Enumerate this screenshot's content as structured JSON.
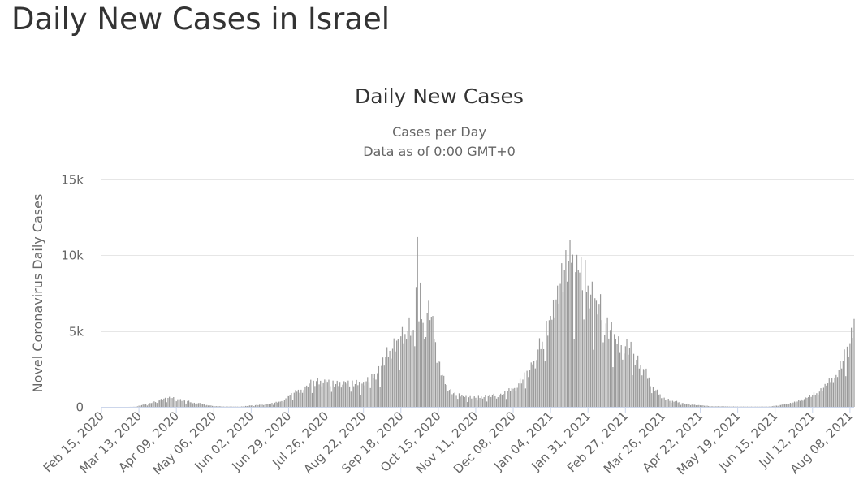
{
  "page": {
    "heading": "Daily New Cases in Israel"
  },
  "chart_data": {
    "type": "bar",
    "title": "Daily New Cases",
    "subtitle": [
      "Cases per Day",
      "Data as of 0:00 GMT+0"
    ],
    "ylabel": "Novel Coronavirus Daily Cases",
    "xlabel": "",
    "ylim": [
      0,
      15000
    ],
    "yticks": [
      {
        "value": 0,
        "label": "0"
      },
      {
        "value": 5000,
        "label": "5k"
      },
      {
        "value": 10000,
        "label": "10k"
      },
      {
        "value": 15000,
        "label": "15k"
      }
    ],
    "x_start": "2020-02-15",
    "x_end": "2021-08-11",
    "xticks": [
      {
        "date": "2020-02-15",
        "label": "Feb 15, 2020"
      },
      {
        "date": "2020-03-13",
        "label": "Mar 13, 2020"
      },
      {
        "date": "2020-04-09",
        "label": "Apr 09, 2020"
      },
      {
        "date": "2020-05-06",
        "label": "May 06, 2020"
      },
      {
        "date": "2020-06-02",
        "label": "Jun 02, 2020"
      },
      {
        "date": "2020-06-29",
        "label": "Jun 29, 2020"
      },
      {
        "date": "2020-07-26",
        "label": "Jul 26, 2020"
      },
      {
        "date": "2020-08-22",
        "label": "Aug 22, 2020"
      },
      {
        "date": "2020-09-18",
        "label": "Sep 18, 2020"
      },
      {
        "date": "2020-10-15",
        "label": "Oct 15, 2020"
      },
      {
        "date": "2020-11-11",
        "label": "Nov 11, 2020"
      },
      {
        "date": "2020-12-08",
        "label": "Dec 08, 2020"
      },
      {
        "date": "2021-01-04",
        "label": "Jan 04, 2021"
      },
      {
        "date": "2021-01-31",
        "label": "Jan 31, 2021"
      },
      {
        "date": "2021-02-27",
        "label": "Feb 27, 2021"
      },
      {
        "date": "2021-03-26",
        "label": "Mar 26, 2021"
      },
      {
        "date": "2021-04-22",
        "label": "Apr 22, 2021"
      },
      {
        "date": "2021-05-19",
        "label": "May 19, 2021"
      },
      {
        "date": "2021-06-15",
        "label": "Jun 15, 2021"
      },
      {
        "date": "2021-07-12",
        "label": "Jul 12, 2021"
      },
      {
        "date": "2021-08-08",
        "label": "Aug 08, 2021"
      }
    ],
    "series": [
      {
        "color": "#999999",
        "points": [
          [
            "2020-02-15",
            0
          ],
          [
            "2020-03-05",
            0
          ],
          [
            "2020-03-10",
            10
          ],
          [
            "2020-03-17",
            150
          ],
          [
            "2020-03-22",
            250
          ],
          [
            "2020-03-27",
            420
          ],
          [
            "2020-04-01",
            600
          ],
          [
            "2020-04-05",
            580
          ],
          [
            "2020-04-10",
            500
          ],
          [
            "2020-04-15",
            420
          ],
          [
            "2020-04-20",
            300
          ],
          [
            "2020-04-25",
            250
          ],
          [
            "2020-05-01",
            120
          ],
          [
            "2020-05-06",
            60
          ],
          [
            "2020-05-15",
            20
          ],
          [
            "2020-05-25",
            15
          ],
          [
            "2020-06-02",
            90
          ],
          [
            "2020-06-09",
            150
          ],
          [
            "2020-06-16",
            220
          ],
          [
            "2020-06-23",
            350
          ],
          [
            "2020-06-29",
            700
          ],
          [
            "2020-07-05",
            1000
          ],
          [
            "2020-07-12",
            1400
          ],
          [
            "2020-07-19",
            1700
          ],
          [
            "2020-07-26",
            1750
          ],
          [
            "2020-08-02",
            1500
          ],
          [
            "2020-08-09",
            1600
          ],
          [
            "2020-08-16",
            1500
          ],
          [
            "2020-08-22",
            1600
          ],
          [
            "2020-08-29",
            1900
          ],
          [
            "2020-09-04",
            2700
          ],
          [
            "2020-09-10",
            3700
          ],
          [
            "2020-09-16",
            4500
          ],
          [
            "2020-09-22",
            4500
          ],
          [
            "2020-09-24",
            5900
          ],
          [
            "2020-09-28",
            4000
          ],
          [
            "2020-09-30",
            11200
          ],
          [
            "2020-10-02",
            8200
          ],
          [
            "2020-10-05",
            4500
          ],
          [
            "2020-10-08",
            7000
          ],
          [
            "2020-10-12",
            4500
          ],
          [
            "2020-10-15",
            3000
          ],
          [
            "2020-10-20",
            1500
          ],
          [
            "2020-10-26",
            900
          ],
          [
            "2020-11-02",
            700
          ],
          [
            "2020-11-11",
            600
          ],
          [
            "2020-11-20",
            700
          ],
          [
            "2020-11-30",
            800
          ],
          [
            "2020-12-08",
            1200
          ],
          [
            "2020-12-15",
            1800
          ],
          [
            "2020-12-22",
            2800
          ],
          [
            "2020-12-29",
            4300
          ],
          [
            "2021-01-04",
            6000
          ],
          [
            "2021-01-09",
            8000
          ],
          [
            "2021-01-14",
            9000
          ],
          [
            "2021-01-19",
            9500
          ],
          [
            "2021-01-24",
            9000
          ],
          [
            "2021-01-31",
            8000
          ],
          [
            "2021-02-06",
            7000
          ],
          [
            "2021-02-13",
            5500
          ],
          [
            "2021-02-20",
            4500
          ],
          [
            "2021-02-27",
            4000
          ],
          [
            "2021-03-05",
            3500
          ],
          [
            "2021-03-12",
            2500
          ],
          [
            "2021-03-19",
            1300
          ],
          [
            "2021-03-26",
            600
          ],
          [
            "2021-04-02",
            400
          ],
          [
            "2021-04-09",
            250
          ],
          [
            "2021-04-16",
            150
          ],
          [
            "2021-04-22",
            100
          ],
          [
            "2021-05-01",
            40
          ],
          [
            "2021-05-19",
            20
          ],
          [
            "2021-06-10",
            15
          ],
          [
            "2021-06-18",
            120
          ],
          [
            "2021-06-24",
            200
          ],
          [
            "2021-07-01",
            350
          ],
          [
            "2021-07-08",
            600
          ],
          [
            "2021-07-15",
            900
          ],
          [
            "2021-07-22",
            1400
          ],
          [
            "2021-07-29",
            2100
          ],
          [
            "2021-08-03",
            3000
          ],
          [
            "2021-08-08",
            4200
          ],
          [
            "2021-08-11",
            5800
          ]
        ]
      }
    ],
    "grid": true,
    "legend": "none"
  }
}
